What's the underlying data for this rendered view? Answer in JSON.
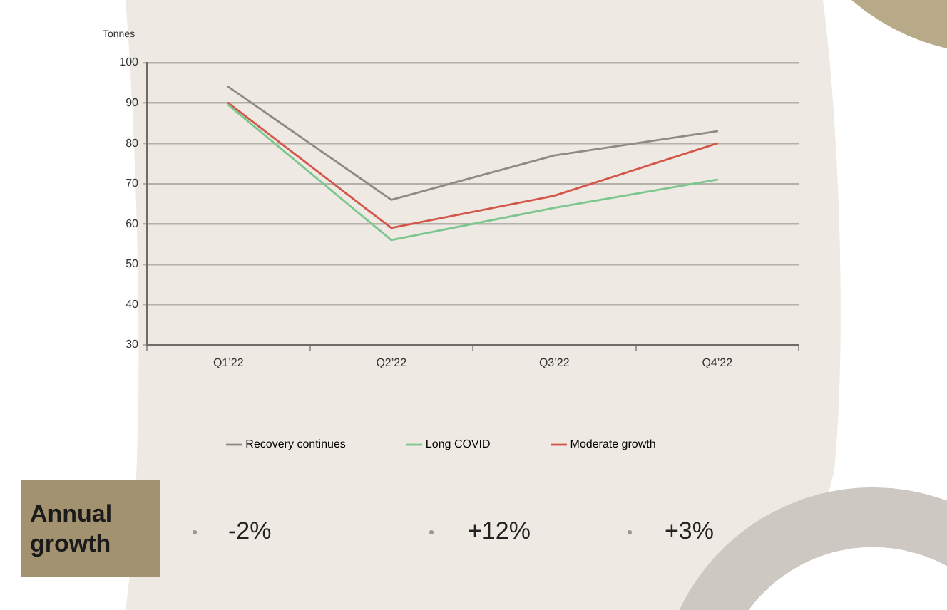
{
  "chart_data": {
    "type": "line",
    "ylabel": "Tonnes",
    "categories": [
      "Q1’22",
      "Q2’22",
      "Q3’22",
      "Q4’22"
    ],
    "series": [
      {
        "name": "Recovery continues",
        "color": "#8d8b85",
        "values": [
          94,
          66,
          77,
          83
        ]
      },
      {
        "name": "Long COVID",
        "color": "#7dc690",
        "values": [
          89.5,
          56,
          64,
          71
        ]
      },
      {
        "name": "Moderate growth",
        "color": "#d2574a",
        "values": [
          90,
          59,
          67,
          80
        ]
      }
    ],
    "ylim": [
      30,
      100
    ],
    "yticks": [
      30,
      40,
      50,
      60,
      70,
      80,
      90,
      100
    ],
    "grid": "y",
    "legend": "bottom",
    "marker": "none",
    "line_style": "solid",
    "annotations": [
      "Annual growth",
      "-2%",
      "+12%",
      "+3%"
    ]
  }
}
